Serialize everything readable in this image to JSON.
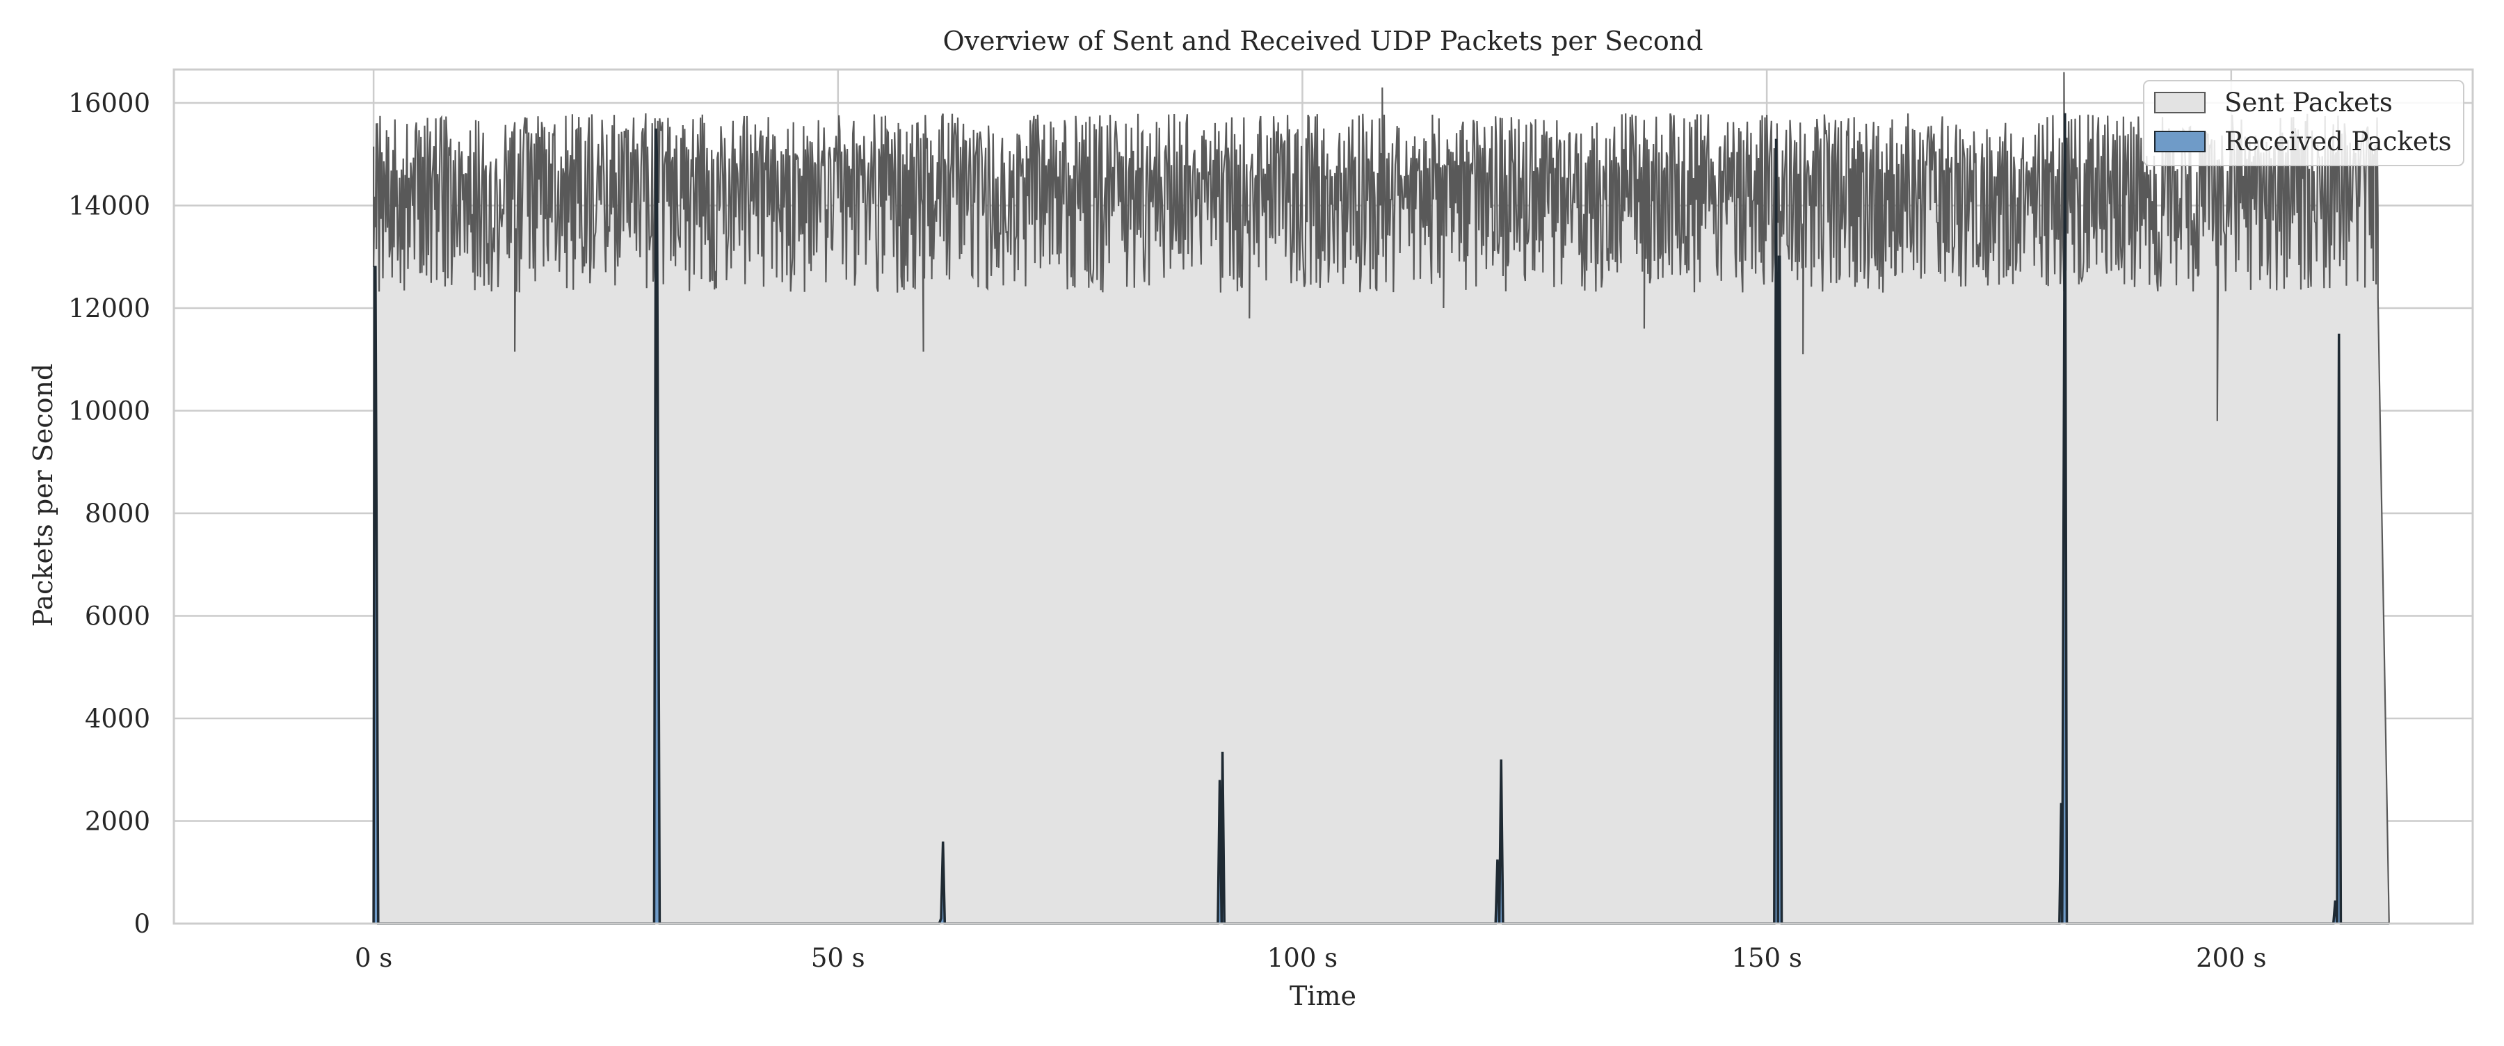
{
  "chart_data": {
    "type": "area",
    "title": "Overview of Sent and Received UDP Packets per Second",
    "xlabel": "Time",
    "ylabel": "Packets per Second",
    "xlim": [
      -21.5,
      226
    ],
    "ylim": [
      0,
      16650
    ],
    "x_ticks": [
      0,
      50,
      100,
      150,
      200
    ],
    "x_tick_labels": [
      "0 s",
      "50 s",
      "100 s",
      "150 s",
      "200 s"
    ],
    "y_ticks": [
      0,
      2000,
      4000,
      6000,
      8000,
      10000,
      12000,
      14000,
      16000
    ],
    "y_tick_labels": [
      "0",
      "2000",
      "4000",
      "6000",
      "8000",
      "10000",
      "12000",
      "14000",
      "16000"
    ],
    "grid": true,
    "legend_position": "top-right",
    "colors": {
      "sent_fill": "#e3e3e3",
      "sent_line": "#595959",
      "received_fill": "#6f9bc8",
      "received_line": "#1f2a33",
      "grid": "#cccccc",
      "axes": "#cccccc",
      "text": "#262626"
    },
    "series": [
      {
        "name": "Sent Packets",
        "summary": {
          "x_start": 0,
          "x_end": 217,
          "typical_min": 12000,
          "typical_max": 15900
        },
        "x": [
          0,
          0.3,
          15.2,
          30.3,
          59.2,
          94.3,
          108.6,
          115.2,
          136.8,
          151.1,
          153.9,
          182.0,
          198.5,
          214.4,
          215.3,
          215.8,
          217.0
        ],
        "y": [
          12800,
          15600,
          11150,
          15700,
          11150,
          11800,
          16300,
          12000,
          11600,
          15600,
          11100,
          16600,
          9800,
          12400,
          15000,
          12200,
          0
        ]
      },
      {
        "name": "Received Packets",
        "x": [
          0.0,
          0.1,
          0.2,
          0.5,
          30.2,
          30.4,
          30.5,
          30.8,
          60.9,
          61.1,
          61.3,
          61.5,
          90.9,
          91.1,
          91.3,
          91.4,
          91.6,
          91.8,
          120.8,
          121.0,
          121.2,
          121.4,
          121.6,
          150.8,
          151.0,
          151.2,
          151.3,
          151.4,
          151.6,
          151.9,
          181.5,
          181.7,
          181.8,
          182.1,
          182.3,
          211.0,
          211.2,
          211.4,
          211.6,
          211.8
        ],
        "y": [
          0,
          12800,
          12800,
          0,
          0,
          15500,
          15000,
          0,
          0,
          100,
          1600,
          0,
          0,
          2800,
          0,
          3350,
          0,
          0,
          0,
          1250,
          0,
          3200,
          0,
          0,
          15300,
          0,
          13000,
          13000,
          0,
          0,
          0,
          2350,
          0,
          15800,
          0,
          0,
          450,
          0,
          11500,
          0
        ]
      }
    ]
  }
}
